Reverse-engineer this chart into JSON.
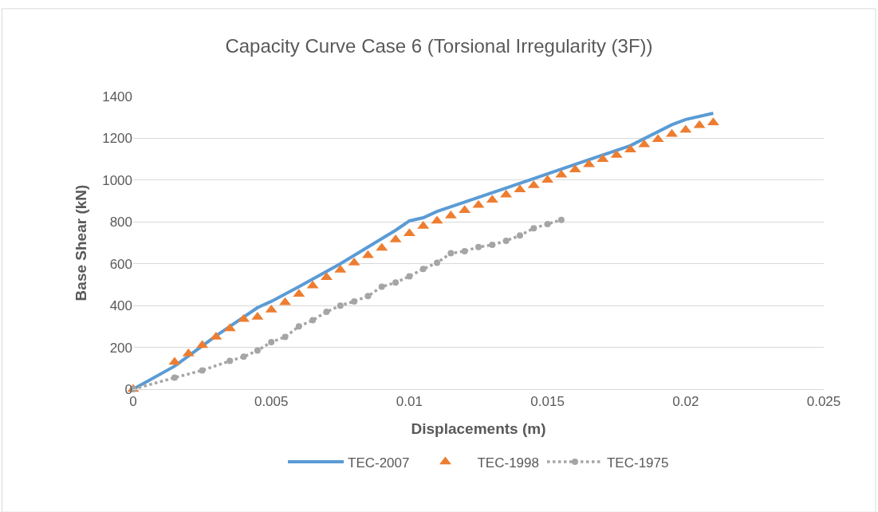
{
  "chart_data": {
    "type": "line",
    "title": "Capacity Curve Case 6 (Torsional Irregularity (3F))",
    "xlabel": "Displacements (m)",
    "ylabel": "Base Shear (kN)",
    "xlim": [
      0,
      0.025
    ],
    "xticks": [
      0,
      0.005,
      0.01,
      0.015,
      0.02,
      0.025
    ],
    "ylim": [
      0,
      1400
    ],
    "yticks": [
      0,
      200,
      400,
      600,
      800,
      1000,
      1200,
      1400
    ],
    "grid": "y",
    "legend": "bottom",
    "series": [
      {
        "name": "TEC-2007",
        "color": "#5b9bd5",
        "marker": "none",
        "line_style": "solid",
        "x": [
          0,
          0.0015,
          0.003,
          0.0045,
          0.005,
          0.006,
          0.0075,
          0.009,
          0.0095,
          0.01,
          0.0105,
          0.011,
          0.012,
          0.014,
          0.016,
          0.018,
          0.0195,
          0.02,
          0.021
        ],
        "values": [
          0,
          110,
          255,
          390,
          420,
          490,
          600,
          720,
          760,
          805,
          820,
          850,
          895,
          985,
          1075,
          1165,
          1265,
          1290,
          1320
        ]
      },
      {
        "name": "TEC-1998",
        "color": "#ed7d31",
        "type": "scatter",
        "marker": "triangle",
        "x": [
          0,
          0.0015,
          0.002,
          0.0025,
          0.003,
          0.0035,
          0.004,
          0.0045,
          0.005,
          0.0055,
          0.006,
          0.0065,
          0.007,
          0.0075,
          0.008,
          0.0085,
          0.009,
          0.0095,
          0.01,
          0.0105,
          0.011,
          0.0115,
          0.012,
          0.0125,
          0.013,
          0.0135,
          0.014,
          0.0145,
          0.015,
          0.0155,
          0.016,
          0.0165,
          0.017,
          0.0175,
          0.018,
          0.0185,
          0.019,
          0.0195,
          0.02,
          0.0205,
          0.021
        ],
        "values": [
          0,
          130,
          170,
          210,
          250,
          290,
          335,
          345,
          380,
          415,
          455,
          495,
          535,
          570,
          605,
          640,
          675,
          715,
          745,
          780,
          805,
          830,
          855,
          880,
          905,
          930,
          955,
          975,
          1000,
          1025,
          1050,
          1075,
          1100,
          1120,
          1145,
          1170,
          1195,
          1220,
          1240,
          1262,
          1275
        ]
      },
      {
        "name": "TEC-1975",
        "color": "#a5a5a5",
        "type": "line",
        "marker": "circle",
        "line_style": "dotted",
        "x": [
          0,
          0.0015,
          0.0025,
          0.0035,
          0.004,
          0.0045,
          0.005,
          0.0055,
          0.006,
          0.0065,
          0.007,
          0.0075,
          0.008,
          0.0085,
          0.009,
          0.0095,
          0.01,
          0.0105,
          0.011,
          0.0115,
          0.012,
          0.0125,
          0.013,
          0.0135,
          0.014,
          0.0145,
          0.015,
          0.0155
        ],
        "values": [
          0,
          55,
          90,
          135,
          155,
          185,
          225,
          250,
          300,
          330,
          370,
          400,
          420,
          445,
          490,
          510,
          540,
          575,
          605,
          650,
          660,
          680,
          690,
          710,
          735,
          770,
          790,
          810
        ]
      }
    ]
  }
}
